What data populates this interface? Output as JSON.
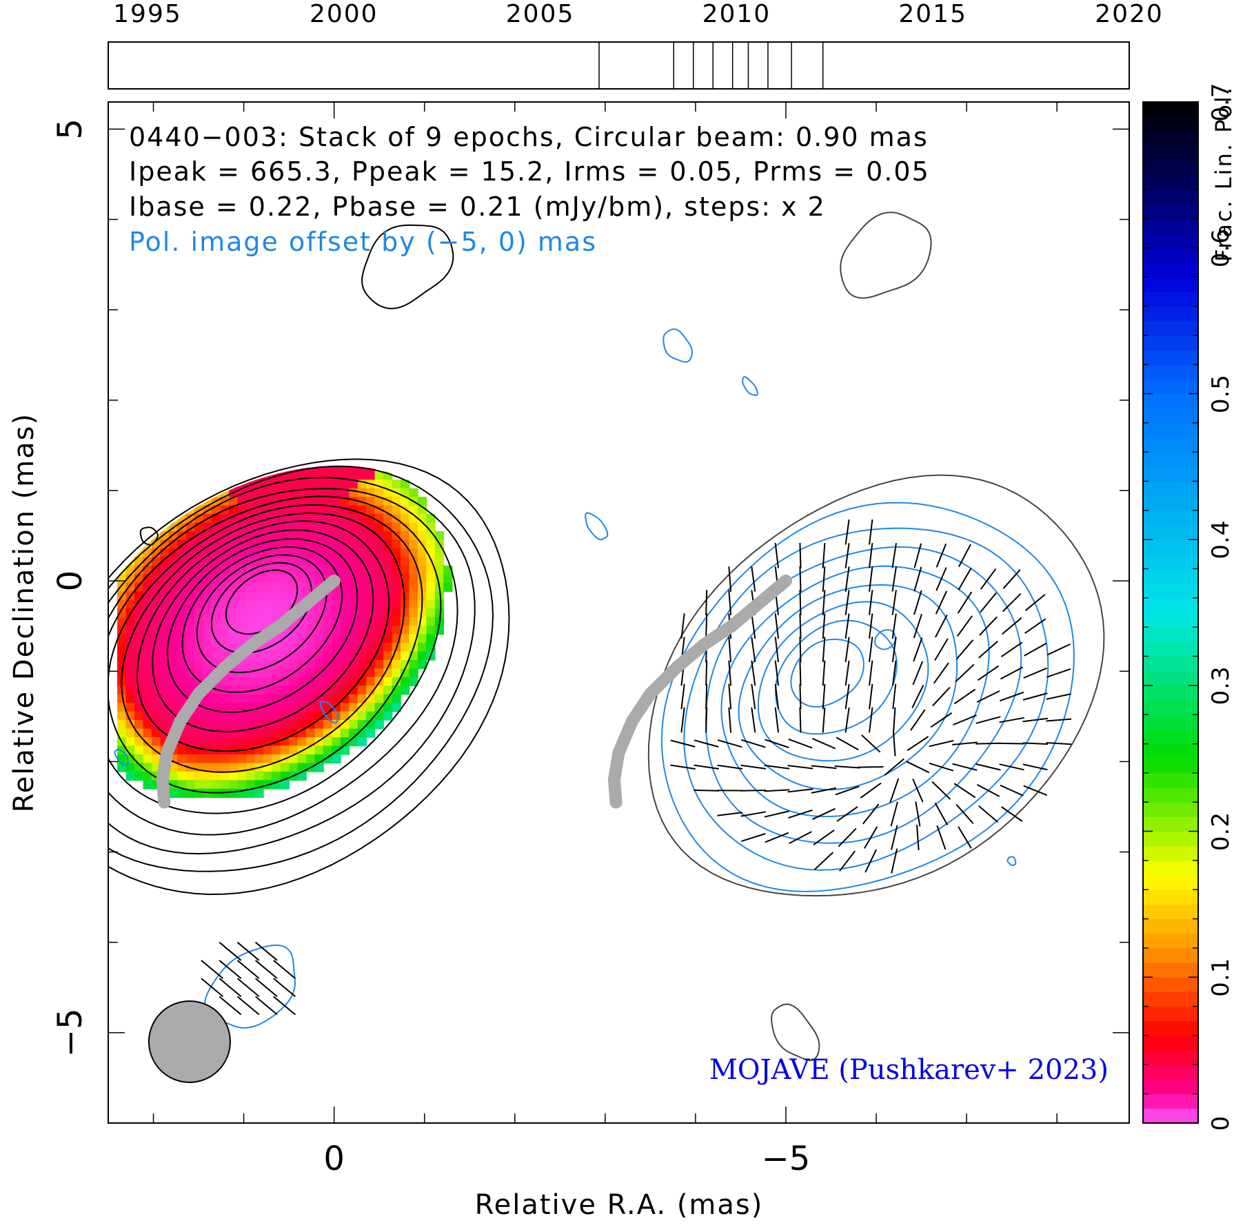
{
  "chart_data": {
    "type": "heatmap",
    "title_lines": [
      "0440−003: Stack of 9 epochs, Circular beam: 0.90 mas",
      "Ipeak = 665.3, Ppeak = 15.2, Irms = 0.05, Prms = 0.05",
      "Ibase = 0.22, Pbase = 0.21 (mJy/bm), steps: x 2"
    ],
    "offset_note": "Pol. image offset by (−5, 0) mas",
    "credit": "MOJAVE (Pushkarev+ 2023)",
    "xlabel": "Relative R.A. (mas)",
    "ylabel": "Relative Declination (mas)",
    "xlim": [
      2.5,
      -8.8
    ],
    "ylim": [
      -6,
      5.3
    ],
    "x_ticks": [
      {
        "value": 0,
        "label": "0"
      },
      {
        "value": -5,
        "label": "−5"
      }
    ],
    "y_ticks": [
      {
        "value": 5,
        "label": "5"
      },
      {
        "value": 0,
        "label": "0"
      },
      {
        "value": -5,
        "label": "−5"
      }
    ],
    "colorbar": {
      "label": "Frac. Lin. Pol.",
      "range": [
        0,
        0.7
      ],
      "ticks": [
        {
          "value": 0,
          "label": "0"
        },
        {
          "value": 0.1,
          "label": "0.1"
        },
        {
          "value": 0.2,
          "label": "0.2"
        },
        {
          "value": 0.3,
          "label": "0.3"
        },
        {
          "value": 0.4,
          "label": "0.4"
        },
        {
          "value": 0.5,
          "label": "0.5"
        },
        {
          "value": 0.6,
          "label": "0.6"
        },
        {
          "value": 0.7,
          "label": "0.7"
        }
      ]
    },
    "timeline": {
      "range": [
        1994,
        2020
      ],
      "ticks": [
        {
          "value": 1995,
          "label": "1995"
        },
        {
          "value": 2000,
          "label": "2000"
        },
        {
          "value": 2005,
          "label": "2005"
        },
        {
          "value": 2010,
          "label": "2010"
        },
        {
          "value": 2015,
          "label": "2015"
        },
        {
          "value": 2020,
          "label": "2020"
        }
      ],
      "epochs": [
        2006.5,
        2008.4,
        2008.9,
        2009.4,
        2009.9,
        2010.3,
        2010.8,
        2011.4,
        2012.2
      ]
    },
    "beam": {
      "x": 1.6,
      "y": -5.1,
      "diameter_mas": 0.9
    },
    "ridge_line": [
      [
        0,
        0
      ],
      [
        0.3,
        -0.25
      ],
      [
        0.6,
        -0.5
      ],
      [
        0.9,
        -0.7
      ],
      [
        1.2,
        -0.95
      ],
      [
        1.5,
        -1.25
      ],
      [
        1.7,
        -1.55
      ],
      [
        1.85,
        -1.9
      ],
      [
        1.9,
        -2.2
      ],
      [
        1.88,
        -2.45
      ]
    ],
    "colors": {
      "stokes_i_contour": "#000000",
      "pol_contour": "#1e88e5",
      "total_contour_grey": "#444444",
      "ridge": "#aaaaaa",
      "beam": "#aaaaaa",
      "offset_note": "#1e88e5",
      "credit": "#0000ee"
    }
  }
}
